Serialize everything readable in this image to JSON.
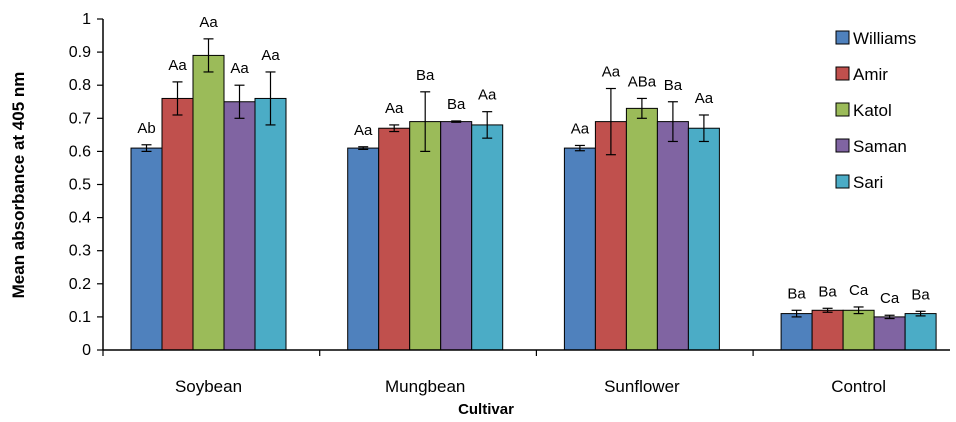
{
  "chart_data": {
    "type": "bar",
    "categories": [
      "Soybean",
      "Mungbean",
      "Sunflower",
      "Control"
    ],
    "xlabel": "Cultivar",
    "ylabel": "Mean absorbance at 405 nm",
    "ylim": [
      0,
      1
    ],
    "yticks": [
      "0",
      "0.1",
      "0.2",
      "0.3",
      "0.4",
      "0.5",
      "0.6",
      "0.7",
      "0.8",
      "0.9",
      "1"
    ],
    "legend_position": "right",
    "grid": false,
    "series": [
      {
        "name": "Williams",
        "color": "#4F81BD",
        "values": [
          0.61,
          0.61,
          0.61,
          0.11
        ],
        "errors": [
          0.01,
          0.004,
          0.008,
          0.01
        ],
        "labels": [
          "Ab",
          "Aa",
          "Aa",
          "Ba"
        ]
      },
      {
        "name": "Amir",
        "color": "#C0504D",
        "values": [
          0.76,
          0.67,
          0.69,
          0.12
        ],
        "errors": [
          0.05,
          0.01,
          0.1,
          0.006
        ],
        "labels": [
          "Aa",
          "Aa",
          "Aa",
          "Ba"
        ]
      },
      {
        "name": "Katol",
        "color": "#9BBB59",
        "values": [
          0.89,
          0.69,
          0.73,
          0.12
        ],
        "errors": [
          0.05,
          0.09,
          0.03,
          0.01
        ],
        "labels": [
          "Aa",
          "Ba",
          "ABa",
          "Ca"
        ]
      },
      {
        "name": "Saman",
        "color": "#8064A2",
        "values": [
          0.75,
          0.69,
          0.69,
          0.1
        ],
        "errors": [
          0.05,
          0.002,
          0.06,
          0.005
        ],
        "labels": [
          "Aa",
          "Ba",
          "Ba",
          "Ca"
        ]
      },
      {
        "name": "Sari",
        "color": "#4BACC6",
        "values": [
          0.76,
          0.68,
          0.67,
          0.11
        ],
        "errors": [
          0.08,
          0.04,
          0.04,
          0.007
        ],
        "labels": [
          "Aa",
          "Aa",
          "Aa",
          "Ba"
        ]
      }
    ]
  }
}
